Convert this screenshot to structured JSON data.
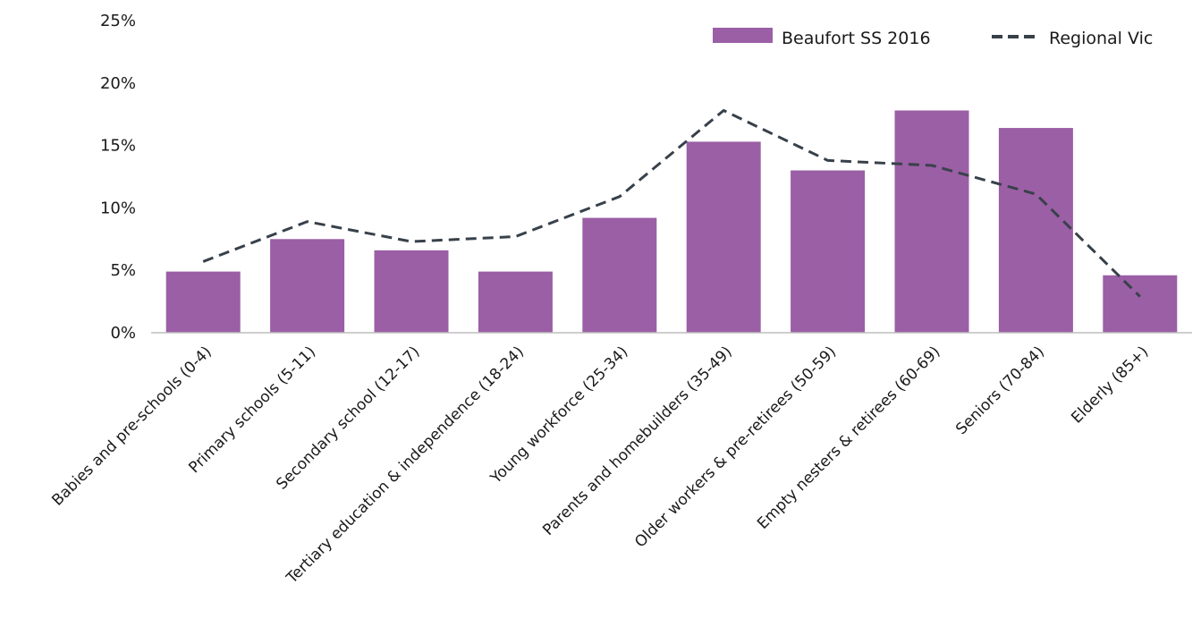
{
  "chart_data": {
    "type": "bar",
    "categories": [
      "Babies and pre-schools (0-4)",
      "Primary schools (5-11)",
      "Secondary school (12-17)",
      "Tertiary education & independence (18-24)",
      "Young workforce (25-34)",
      "Parents and homebuilders (35-49)",
      "Older workers & pre-retirees (50-59)",
      "Empty nesters & retirees (60-69)",
      "Seniors (70-84)",
      "Elderly (85+)"
    ],
    "series": [
      {
        "name": "Beaufort SS 2016",
        "type": "bar",
        "color": "#9b5fa5",
        "values": [
          4.9,
          7.5,
          6.6,
          4.9,
          9.2,
          15.3,
          13.0,
          17.8,
          16.4,
          4.6
        ]
      },
      {
        "name": "Regional Vic",
        "type": "line",
        "style": "dashed",
        "color": "#38414a",
        "values": [
          5.7,
          8.9,
          7.3,
          7.7,
          10.9,
          17.8,
          13.8,
          13.4,
          11.1,
          2.9
        ]
      }
    ],
    "title": "",
    "xlabel": "",
    "ylabel": "",
    "ylim": [
      0,
      25
    ],
    "yticks": [
      0,
      5,
      10,
      15,
      20,
      25
    ],
    "ytick_labels": [
      "0%",
      "5%",
      "10%",
      "15%",
      "20%",
      "25%"
    ],
    "grid": false,
    "legend_position": "top-right"
  }
}
